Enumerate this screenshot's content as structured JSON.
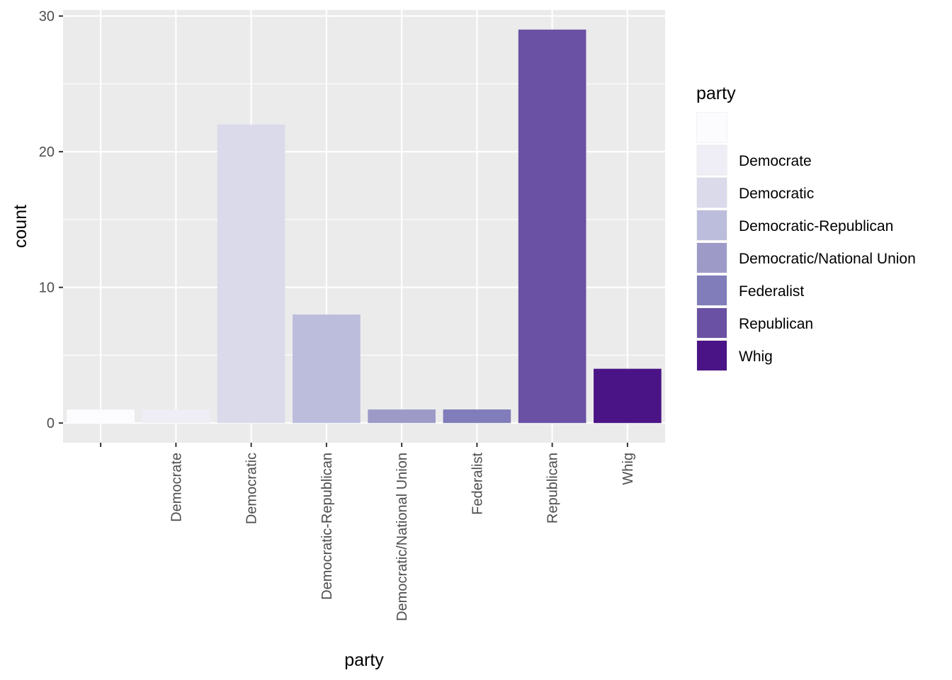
{
  "chart_data": {
    "type": "bar",
    "title": "",
    "xlabel": "party",
    "ylabel": "count",
    "categories": [
      "",
      "Democrate",
      "Democratic",
      "Democratic-Republican",
      "Democratic/National Union",
      "Federalist",
      "Republican",
      "Whig"
    ],
    "values": [
      1,
      1,
      22,
      8,
      1,
      1,
      29,
      4
    ],
    "colors": [
      "#fcfbfd",
      "#efedf5",
      "#dadaeb",
      "#bcbddc",
      "#9e9ac8",
      "#807dba",
      "#6a51a3",
      "#4a1486"
    ],
    "ylim": [
      -1.45,
      30.45
    ],
    "yticks": [
      0,
      10,
      20,
      30
    ],
    "y_minor_ticks": [
      5,
      15,
      25
    ],
    "grid": true,
    "background": "#ebebeb",
    "legend": {
      "title": "party",
      "position": "right",
      "entries": [
        "",
        "Democrate",
        "Democratic",
        "Democratic-Republican",
        "Democratic/National Union",
        "Federalist",
        "Republican",
        "Whig"
      ]
    }
  }
}
